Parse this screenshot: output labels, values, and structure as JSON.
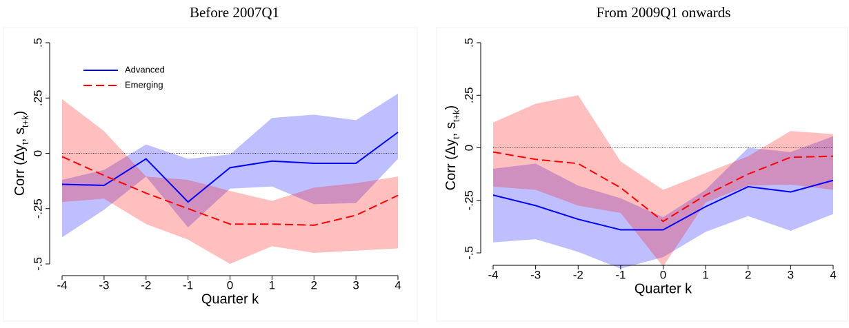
{
  "chart_data": [
    {
      "type": "line",
      "title": "Before 2007Q1",
      "xlabel": "Quarter k",
      "ylabel": [
        "Corr (Δy",
        "t",
        ", s",
        "t+k",
        ")"
      ],
      "x": [
        -4,
        -3,
        -2,
        -1,
        0,
        1,
        2,
        3,
        4
      ],
      "xlim": [
        -4,
        4
      ],
      "xticks": [
        -4,
        -3,
        -2,
        -1,
        0,
        1,
        2,
        3,
        4
      ],
      "ylim": [
        -0.5,
        0.5
      ],
      "yticks": [
        {
          "value": -0.5,
          "label": "-.5"
        },
        {
          "value": -0.25,
          "label": "-.25"
        },
        0,
        {
          "value": 0.25,
          "label": ".25"
        },
        {
          "value": 0.5,
          "label": ".5"
        }
      ],
      "refline": 0,
      "legend": "top left",
      "series": [
        {
          "name": "Advanced",
          "color": "#0000ff",
          "dashed": false,
          "values": [
            -0.14,
            -0.145,
            -0.025,
            -0.22,
            -0.065,
            -0.035,
            -0.045,
            -0.045,
            0.095
          ],
          "lower": [
            -0.38,
            -0.255,
            -0.105,
            -0.335,
            -0.16,
            -0.15,
            -0.23,
            -0.225,
            -0.025
          ],
          "upper": [
            -0.12,
            -0.075,
            0.04,
            -0.025,
            -0.005,
            0.16,
            0.175,
            0.15,
            0.27
          ]
        },
        {
          "name": "Emerging",
          "color": "#ff0000",
          "dashed": true,
          "values": [
            -0.015,
            -0.1,
            -0.18,
            -0.25,
            -0.32,
            -0.32,
            -0.325,
            -0.28,
            -0.19
          ],
          "lower": [
            -0.22,
            -0.205,
            -0.32,
            -0.39,
            -0.5,
            -0.42,
            -0.45,
            -0.44,
            -0.43
          ],
          "upper": [
            0.245,
            0.1,
            -0.105,
            -0.12,
            -0.17,
            -0.215,
            -0.155,
            -0.135,
            -0.105
          ]
        }
      ]
    },
    {
      "type": "line",
      "title": "From 2009Q1 onwards",
      "xlabel": "Quarter k",
      "ylabel": [
        "Corr (Δy",
        "t",
        ", s",
        "t+k",
        ")"
      ],
      "x": [
        -4,
        -3,
        -2,
        -1,
        0,
        1,
        2,
        3,
        4
      ],
      "xlim": [
        -4,
        4
      ],
      "xticks": [
        -4,
        -3,
        -2,
        -1,
        0,
        1,
        2,
        3,
        4
      ],
      "ylim": [
        -0.5,
        0.5
      ],
      "yticks": [
        {
          "value": -0.5,
          "label": "-.5"
        },
        {
          "value": -0.25,
          "label": "-.25"
        },
        0,
        {
          "value": 0.25,
          "label": ".25"
        },
        {
          "value": 0.5,
          "label": ".5"
        }
      ],
      "refline": 0,
      "series": [
        {
          "color": "#0000ff",
          "dashed": false,
          "values": [
            -0.225,
            -0.275,
            -0.34,
            -0.39,
            -0.39,
            -0.28,
            -0.185,
            -0.21,
            -0.155
          ],
          "lower": [
            -0.45,
            -0.435,
            -0.495,
            -0.575,
            -0.52,
            -0.4,
            -0.325,
            -0.395,
            -0.315
          ],
          "upper": [
            -0.1,
            -0.075,
            -0.18,
            -0.24,
            -0.33,
            -0.2,
            0.0,
            -0.02,
            0.055
          ]
        },
        {
          "color": "#ff0000",
          "dashed": true,
          "values": [
            -0.02,
            -0.055,
            -0.075,
            -0.19,
            -0.35,
            -0.225,
            -0.125,
            -0.045,
            -0.04
          ],
          "lower": [
            -0.185,
            -0.2,
            -0.275,
            -0.31,
            -0.565,
            -0.26,
            -0.18,
            -0.175,
            -0.2
          ],
          "upper": [
            0.12,
            0.21,
            0.25,
            -0.065,
            -0.2,
            -0.12,
            -0.04,
            0.08,
            0.065
          ]
        }
      ]
    }
  ]
}
